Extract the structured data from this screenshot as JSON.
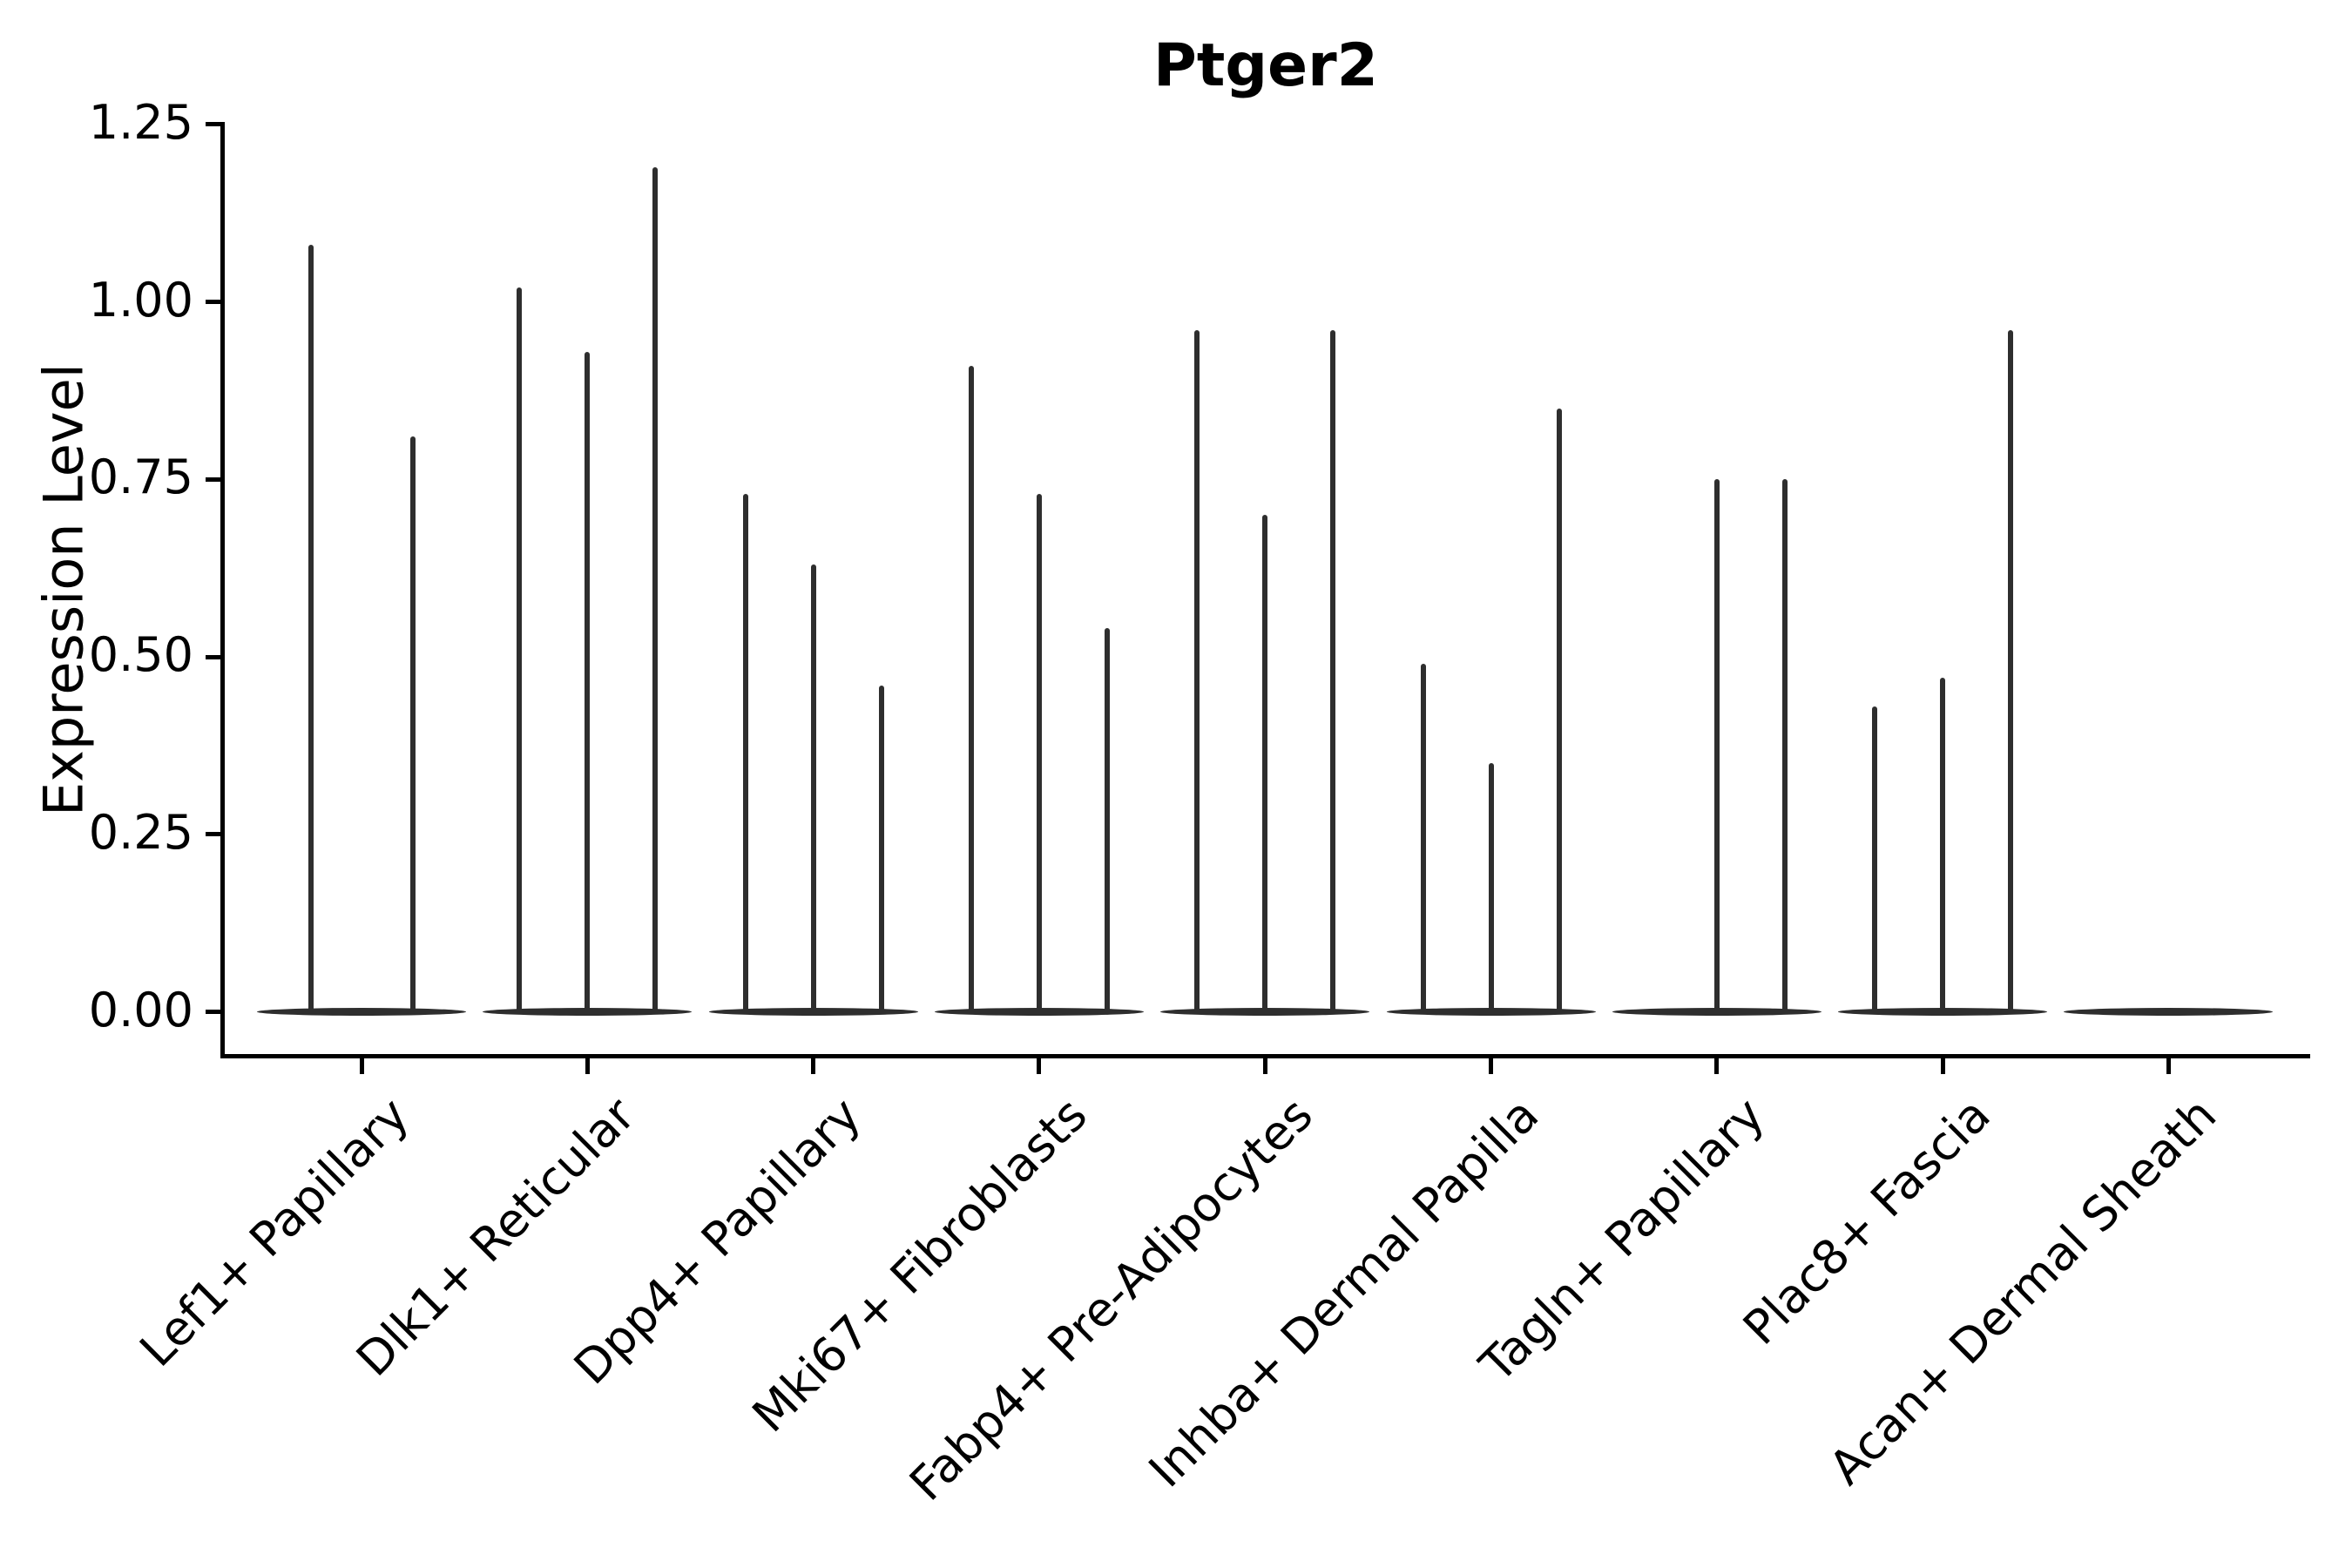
{
  "colors": {
    "violin": "#2e2e2e",
    "axis": "#000000",
    "text": "#000000",
    "background": "#ffffff"
  },
  "chart_data": {
    "type": "violin",
    "title": "Ptger2",
    "xlabel": "",
    "ylabel": "Expression Level",
    "ylim": [
      0,
      1.25
    ],
    "yticks": [
      0.0,
      0.25,
      0.5,
      0.75,
      1.0,
      1.25
    ],
    "ytick_labels": [
      "0.00",
      "0.25",
      "0.50",
      "0.75",
      "1.00",
      "1.25"
    ],
    "grid": false,
    "legend": false,
    "description": "Violin plot of Ptger2 expression per fibroblast cluster; each category holds 2-3 very thin sub-violins: a flat bulge at 0 with a narrow spike rising to the maximum expressed value.",
    "categories": [
      "Lef1+ Papillary",
      "Dlk1+ Reticular",
      "Dpp4+ Papillary",
      "Mki67+ Fibroblasts",
      "Fabp4+ Pre-Adipocytes",
      "Inhba+ Dermal Papilla",
      "Tagln+ Papillary",
      "Plac8+ Fascia",
      "Acan+ Dermal Sheath"
    ],
    "violins": [
      {
        "category": "Lef1+ Papillary",
        "spikes": [
          {
            "offset": -58.5,
            "value": 1.08
          },
          {
            "offset": 58.5,
            "value": 0.81
          }
        ]
      },
      {
        "category": "Dlk1+ Reticular",
        "spikes": [
          {
            "offset": -78,
            "value": 1.02
          },
          {
            "offset": 0,
            "value": 0.93
          },
          {
            "offset": 78,
            "value": 1.19
          }
        ]
      },
      {
        "category": "Dpp4+ Papillary",
        "spikes": [
          {
            "offset": -78,
            "value": 0.73
          },
          {
            "offset": 0,
            "value": 0.63
          },
          {
            "offset": 78,
            "value": 0.46
          }
        ]
      },
      {
        "category": "Mki67+ Fibroblasts",
        "spikes": [
          {
            "offset": -78,
            "value": 0.91
          },
          {
            "offset": 0,
            "value": 0.73
          },
          {
            "offset": 78,
            "value": 0.54
          }
        ]
      },
      {
        "category": "Fabp4+ Pre-Adipocytes",
        "spikes": [
          {
            "offset": -78,
            "value": 0.96
          },
          {
            "offset": 0,
            "value": 0.7
          },
          {
            "offset": 78,
            "value": 0.96
          }
        ]
      },
      {
        "category": "Inhba+ Dermal Papilla",
        "spikes": [
          {
            "offset": -78,
            "value": 0.49
          },
          {
            "offset": 0,
            "value": 0.35
          },
          {
            "offset": 78,
            "value": 0.85
          }
        ]
      },
      {
        "category": "Tagln+ Papillary",
        "spikes": [
          {
            "offset": 0,
            "value": 0.75
          },
          {
            "offset": 78,
            "value": 0.75
          }
        ]
      },
      {
        "category": "Plac8+ Fascia",
        "spikes": [
          {
            "offset": -78,
            "value": 0.43
          },
          {
            "offset": 0,
            "value": 0.47
          },
          {
            "offset": 78,
            "value": 0.96
          }
        ]
      },
      {
        "category": "Acan+ Dermal Sheath",
        "spikes": []
      }
    ]
  }
}
